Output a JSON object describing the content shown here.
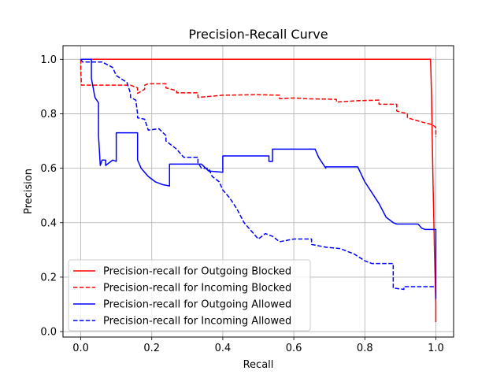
{
  "chart_data": {
    "type": "line",
    "title": "Precision-Recall Curve",
    "xlabel": "Recall",
    "ylabel": "Precision",
    "xlim": [
      -0.05,
      1.05
    ],
    "ylim": [
      -0.02,
      1.05
    ],
    "xticks": [
      0.0,
      0.2,
      0.4,
      0.6,
      0.8,
      1.0
    ],
    "xtick_labels": [
      "0.0",
      "0.2",
      "0.4",
      "0.6",
      "0.8",
      "1.0"
    ],
    "yticks": [
      0.0,
      0.2,
      0.4,
      0.6,
      0.8,
      1.0
    ],
    "ytick_labels": [
      "0.0",
      "0.2",
      "0.4",
      "0.6",
      "0.8",
      "1.0"
    ],
    "grid": true,
    "legend_position": "lower-left",
    "series": [
      {
        "name": "Precision-recall for Outgoing Blocked",
        "color": "#ff0000",
        "dash": "solid",
        "points": [
          [
            0.0,
            1.0
          ],
          [
            0.985,
            1.0
          ],
          [
            0.986,
            0.96
          ],
          [
            0.988,
            0.86
          ],
          [
            0.99,
            0.7
          ],
          [
            0.992,
            0.55
          ],
          [
            0.994,
            0.43
          ],
          [
            0.996,
            0.3
          ],
          [
            0.998,
            0.2
          ],
          [
            1.0,
            0.1
          ],
          [
            1.0,
            0.035
          ]
        ]
      },
      {
        "name": "Precision-recall for Incoming Blocked",
        "color": "#ff0000",
        "dash": "dashed",
        "points": [
          [
            0.0,
            1.0
          ],
          [
            0.0,
            0.96
          ],
          [
            0.002,
            0.905
          ],
          [
            0.14,
            0.905
          ],
          [
            0.16,
            0.895
          ],
          [
            0.16,
            0.875
          ],
          [
            0.18,
            0.89
          ],
          [
            0.18,
            0.905
          ],
          [
            0.19,
            0.91
          ],
          [
            0.24,
            0.91
          ],
          [
            0.24,
            0.895
          ],
          [
            0.27,
            0.885
          ],
          [
            0.27,
            0.877
          ],
          [
            0.33,
            0.877
          ],
          [
            0.33,
            0.86
          ],
          [
            0.4,
            0.868
          ],
          [
            0.5,
            0.87
          ],
          [
            0.56,
            0.868
          ],
          [
            0.56,
            0.855
          ],
          [
            0.6,
            0.858
          ],
          [
            0.64,
            0.855
          ],
          [
            0.72,
            0.853
          ],
          [
            0.72,
            0.843
          ],
          [
            0.78,
            0.848
          ],
          [
            0.84,
            0.85
          ],
          [
            0.84,
            0.835
          ],
          [
            0.89,
            0.835
          ],
          [
            0.89,
            0.81
          ],
          [
            0.92,
            0.8
          ],
          [
            0.92,
            0.785
          ],
          [
            0.96,
            0.77
          ],
          [
            0.99,
            0.76
          ],
          [
            1.0,
            0.75
          ],
          [
            1.0,
            0.715
          ]
        ]
      },
      {
        "name": "Precision-recall for Outgoing Allowed",
        "color": "#0000ff",
        "dash": "solid",
        "points": [
          [
            0.0,
            1.0
          ],
          [
            0.03,
            1.0
          ],
          [
            0.03,
            0.93
          ],
          [
            0.04,
            0.86
          ],
          [
            0.05,
            0.84
          ],
          [
            0.05,
            0.72
          ],
          [
            0.055,
            0.61
          ],
          [
            0.06,
            0.63
          ],
          [
            0.07,
            0.63
          ],
          [
            0.07,
            0.61
          ],
          [
            0.09,
            0.63
          ],
          [
            0.1,
            0.625
          ],
          [
            0.1,
            0.73
          ],
          [
            0.16,
            0.73
          ],
          [
            0.16,
            0.63
          ],
          [
            0.17,
            0.6
          ],
          [
            0.19,
            0.57
          ],
          [
            0.21,
            0.55
          ],
          [
            0.23,
            0.54
          ],
          [
            0.25,
            0.535
          ],
          [
            0.25,
            0.615
          ],
          [
            0.34,
            0.615
          ],
          [
            0.36,
            0.59
          ],
          [
            0.4,
            0.585
          ],
          [
            0.4,
            0.645
          ],
          [
            0.53,
            0.645
          ],
          [
            0.53,
            0.625
          ],
          [
            0.54,
            0.625
          ],
          [
            0.54,
            0.67
          ],
          [
            0.66,
            0.67
          ],
          [
            0.67,
            0.64
          ],
          [
            0.69,
            0.6
          ],
          [
            0.69,
            0.605
          ],
          [
            0.78,
            0.605
          ],
          [
            0.8,
            0.55
          ],
          [
            0.84,
            0.47
          ],
          [
            0.86,
            0.42
          ],
          [
            0.88,
            0.4
          ],
          [
            0.89,
            0.395
          ],
          [
            0.95,
            0.395
          ],
          [
            0.96,
            0.38
          ],
          [
            0.97,
            0.375
          ],
          [
            1.0,
            0.375
          ],
          [
            1.0,
            0.12
          ]
        ]
      },
      {
        "name": "Precision-recall for Incoming Allowed",
        "color": "#0000ff",
        "dash": "dashed",
        "points": [
          [
            0.0,
            1.0
          ],
          [
            0.005,
            0.99
          ],
          [
            0.06,
            0.99
          ],
          [
            0.09,
            0.97
          ],
          [
            0.1,
            0.94
          ],
          [
            0.13,
            0.915
          ],
          [
            0.14,
            0.875
          ],
          [
            0.14,
            0.86
          ],
          [
            0.155,
            0.85
          ],
          [
            0.16,
            0.8
          ],
          [
            0.16,
            0.785
          ],
          [
            0.18,
            0.78
          ],
          [
            0.19,
            0.74
          ],
          [
            0.22,
            0.745
          ],
          [
            0.24,
            0.72
          ],
          [
            0.24,
            0.7
          ],
          [
            0.27,
            0.67
          ],
          [
            0.29,
            0.64
          ],
          [
            0.33,
            0.64
          ],
          [
            0.33,
            0.62
          ],
          [
            0.34,
            0.6
          ],
          [
            0.36,
            0.6
          ],
          [
            0.37,
            0.57
          ],
          [
            0.39,
            0.55
          ],
          [
            0.4,
            0.52
          ],
          [
            0.42,
            0.49
          ],
          [
            0.44,
            0.45
          ],
          [
            0.46,
            0.4
          ],
          [
            0.48,
            0.37
          ],
          [
            0.5,
            0.34
          ],
          [
            0.52,
            0.36
          ],
          [
            0.54,
            0.35
          ],
          [
            0.56,
            0.33
          ],
          [
            0.6,
            0.34
          ],
          [
            0.65,
            0.34
          ],
          [
            0.65,
            0.32
          ],
          [
            0.69,
            0.31
          ],
          [
            0.73,
            0.305
          ],
          [
            0.77,
            0.285
          ],
          [
            0.8,
            0.26
          ],
          [
            0.82,
            0.25
          ],
          [
            0.87,
            0.25
          ],
          [
            0.88,
            0.25
          ],
          [
            0.88,
            0.16
          ],
          [
            0.91,
            0.155
          ],
          [
            0.91,
            0.165
          ],
          [
            1.0,
            0.165
          ]
        ]
      }
    ]
  }
}
